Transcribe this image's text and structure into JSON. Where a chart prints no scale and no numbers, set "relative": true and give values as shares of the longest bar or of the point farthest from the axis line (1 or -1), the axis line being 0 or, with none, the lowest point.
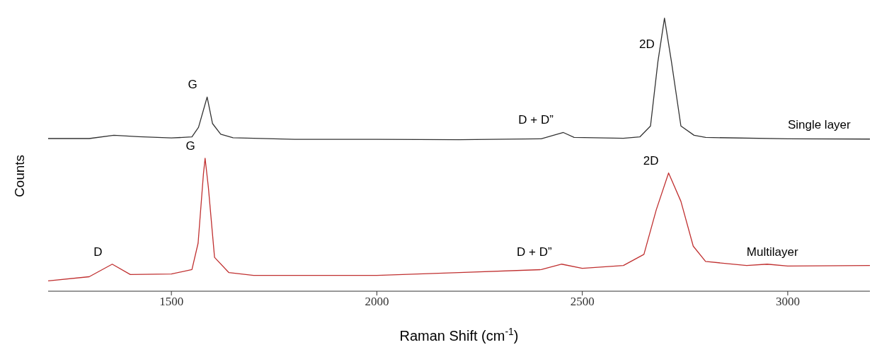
{
  "chart_data": {
    "type": "line",
    "relative": true,
    "xlabel": "Raman Shift (cm$^{-1}$)",
    "ylabel": "Counts",
    "xlim": [
      1200,
      3200
    ],
    "xticks": [
      1500,
      2000,
      2500,
      3000
    ],
    "marker": "none",
    "line_style": "solid",
    "series": [
      {
        "name": "Single layer",
        "color": "#333333",
        "x": [
          1200,
          1300,
          1360,
          1420,
          1500,
          1550,
          1566,
          1587,
          1600,
          1620,
          1650,
          1800,
          2000,
          2200,
          2400,
          2454,
          2480,
          2600,
          2640,
          2666,
          2684,
          2700,
          2717,
          2740,
          2772,
          2800,
          3000,
          3200
        ],
        "values": [
          0.559,
          0.559,
          0.571,
          0.566,
          0.561,
          0.565,
          0.6,
          0.711,
          0.614,
          0.575,
          0.562,
          0.556,
          0.556,
          0.555,
          0.558,
          0.581,
          0.563,
          0.56,
          0.565,
          0.605,
          0.84,
          1.0,
          0.84,
          0.605,
          0.571,
          0.563,
          0.558,
          0.557
        ]
      },
      {
        "name": "Multilayer",
        "color": "#c03030",
        "x": [
          1200,
          1300,
          1356,
          1400,
          1500,
          1550,
          1565,
          1578,
          1582,
          1590,
          1605,
          1640,
          1700,
          2000,
          2200,
          2400,
          2450,
          2500,
          2600,
          2650,
          2680,
          2710,
          2740,
          2770,
          2800,
          2900,
          2950,
          3000,
          3200
        ],
        "values": [
          0.038,
          0.053,
          0.099,
          0.061,
          0.063,
          0.079,
          0.176,
          0.43,
          0.487,
          0.38,
          0.124,
          0.068,
          0.058,
          0.058,
          0.068,
          0.079,
          0.099,
          0.084,
          0.094,
          0.135,
          0.298,
          0.433,
          0.329,
          0.165,
          0.109,
          0.094,
          0.099,
          0.092,
          0.094
        ]
      }
    ],
    "annotations": [
      {
        "text": "G",
        "x": 1587,
        "y": 0.711
      },
      {
        "text": "D + D”",
        "x": 2454,
        "y": 0.581
      },
      {
        "text": "2D",
        "x": 2700,
        "y": 1.0
      },
      {
        "text": "D",
        "x": 1356,
        "y": 0.099
      },
      {
        "text": "G",
        "x": 1582,
        "y": 0.487
      },
      {
        "text": "D + D”",
        "x": 2450,
        "y": 0.099
      },
      {
        "text": "2D",
        "x": 2710,
        "y": 0.433
      }
    ]
  }
}
